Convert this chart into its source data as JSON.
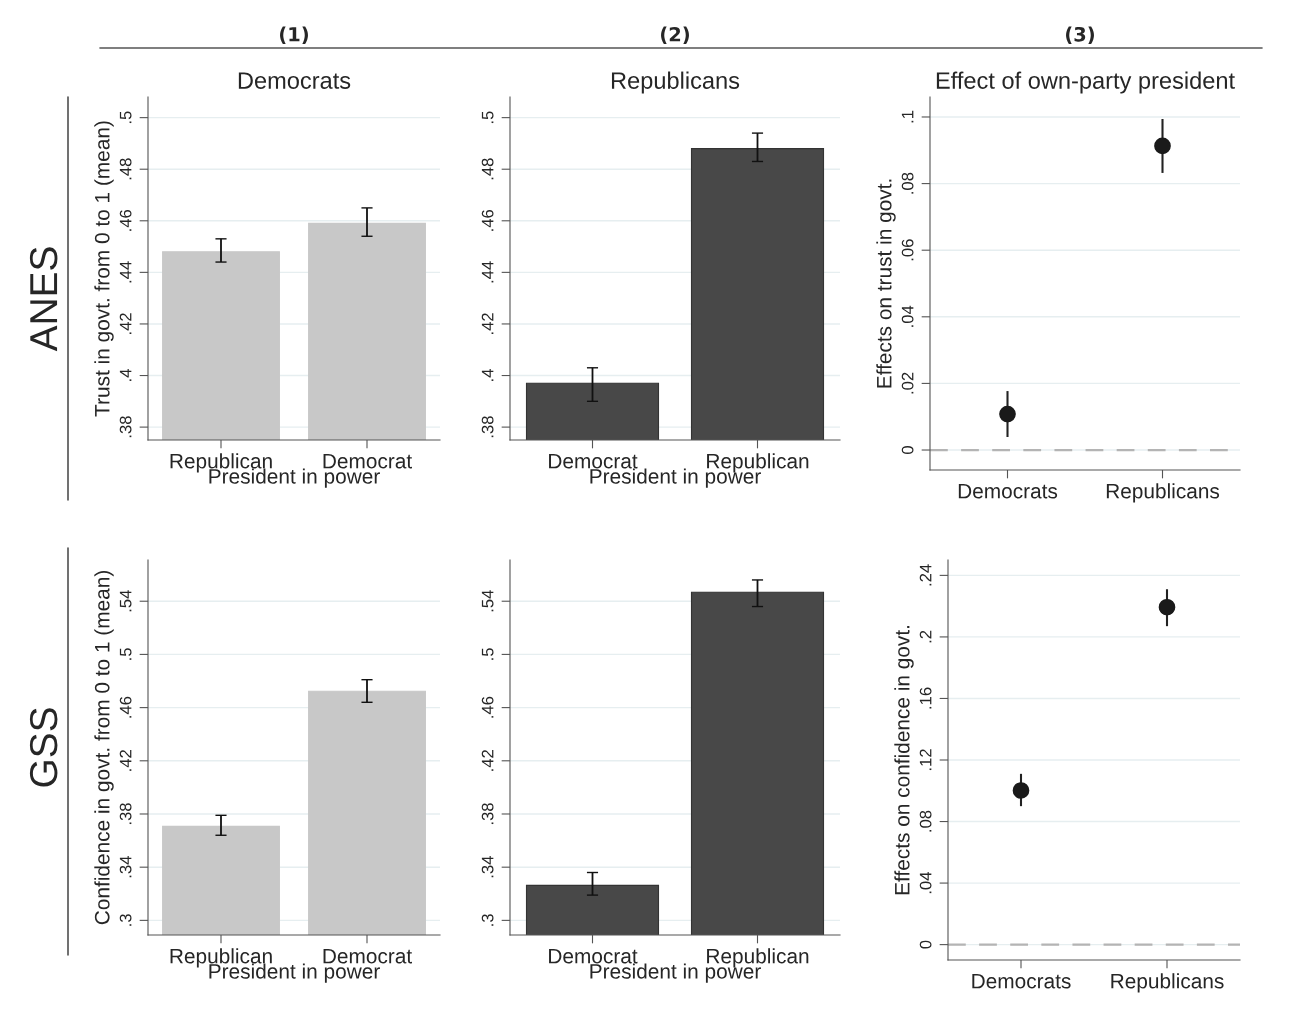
{
  "chart_data": [
    {
      "type": "bar",
      "title": "Democrats",
      "xlabel": "President in power",
      "ylabel": "Trust in govt. from 0 to 1 (mean)",
      "annotations": [
        "(1)",
        "ANES"
      ],
      "categories": [
        "Republican",
        "Democrat"
      ],
      "values": [
        0.448,
        0.459
      ],
      "errors": [
        [
          0.444,
          0.453
        ],
        [
          0.454,
          0.465
        ]
      ],
      "color": "#c8c8c8",
      "ylim": [
        0.375,
        0.508
      ],
      "yticks": [
        {
          "value": 0.38,
          "label": ".38"
        },
        {
          "value": 0.4,
          "label": ".4"
        },
        {
          "value": 0.42,
          "label": ".42"
        },
        {
          "value": 0.44,
          "label": ".44"
        },
        {
          "value": 0.46,
          "label": ".46"
        },
        {
          "value": 0.48,
          "label": ".48"
        },
        {
          "value": 0.5,
          "label": ".5"
        }
      ],
      "grid": "y"
    },
    {
      "type": "bar",
      "title": "Republicans",
      "xlabel": "President in power",
      "annotations": [
        "(2)"
      ],
      "categories": [
        "Democrat",
        "Republican"
      ],
      "values": [
        0.397,
        0.488
      ],
      "errors": [
        [
          0.39,
          0.403
        ],
        [
          0.483,
          0.494
        ]
      ],
      "color": "#484848",
      "ylim": [
        0.375,
        0.508
      ],
      "yticks": [
        {
          "value": 0.38,
          "label": ".38"
        },
        {
          "value": 0.4,
          "label": ".4"
        },
        {
          "value": 0.42,
          "label": ".42"
        },
        {
          "value": 0.44,
          "label": ".44"
        },
        {
          "value": 0.46,
          "label": ".46"
        },
        {
          "value": 0.48,
          "label": ".48"
        },
        {
          "value": 0.5,
          "label": ".5"
        }
      ],
      "grid": "y"
    },
    {
      "type": "scatter",
      "title": "Effect of own-party president",
      "ylabel": "Effects on trust in govt.",
      "annotations": [
        "(3)"
      ],
      "categories": [
        "Democrats",
        "Republicans"
      ],
      "values": [
        0.0108,
        0.0913
      ],
      "errors": [
        [
          0.0039,
          0.0177
        ],
        [
          0.0832,
          0.0994
        ]
      ],
      "color": "#1a1a1a",
      "marker": "circle",
      "ylim": [
        -0.006,
        0.106
      ],
      "yticks": [
        {
          "value": 0,
          "label": "0"
        },
        {
          "value": 0.02,
          "label": ".02"
        },
        {
          "value": 0.04,
          "label": ".04"
        },
        {
          "value": 0.06,
          "label": ".06"
        },
        {
          "value": 0.08,
          "label": ".08"
        },
        {
          "value": 0.1,
          "label": ".1"
        }
      ],
      "grid": "y",
      "ref_lines": [
        {
          "axis": "y",
          "value": 0,
          "color": "#b4b4b4",
          "line_style": "dashed"
        }
      ]
    },
    {
      "type": "bar",
      "xlabel": "President in power",
      "ylabel": "Confidence in govt. from 0 to 1 (mean)",
      "annotations": [
        "GSS"
      ],
      "categories": [
        "Republican",
        "Democrat"
      ],
      "values": [
        0.3707,
        0.4723
      ],
      "errors": [
        [
          0.364,
          0.379
        ],
        [
          0.464,
          0.481
        ]
      ],
      "color": "#c8c8c8",
      "ylim": [
        0.289,
        0.571
      ],
      "yticks": [
        {
          "value": 0.3,
          "label": ".3"
        },
        {
          "value": 0.34,
          "label": ".34"
        },
        {
          "value": 0.38,
          "label": ".38"
        },
        {
          "value": 0.42,
          "label": ".42"
        },
        {
          "value": 0.46,
          "label": ".46"
        },
        {
          "value": 0.5,
          "label": ".5"
        },
        {
          "value": 0.54,
          "label": ".54"
        }
      ],
      "grid": "y"
    },
    {
      "type": "bar",
      "xlabel": "President in power",
      "categories": [
        "Democrat",
        "Republican"
      ],
      "values": [
        0.3263,
        0.5468
      ],
      "errors": [
        [
          0.319,
          0.336
        ],
        [
          0.536,
          0.556
        ]
      ],
      "color": "#484848",
      "ylim": [
        0.289,
        0.571
      ],
      "yticks": [
        {
          "value": 0.3,
          "label": ".3"
        },
        {
          "value": 0.34,
          "label": ".34"
        },
        {
          "value": 0.38,
          "label": ".38"
        },
        {
          "value": 0.42,
          "label": ".42"
        },
        {
          "value": 0.46,
          "label": ".46"
        },
        {
          "value": 0.5,
          "label": ".5"
        },
        {
          "value": 0.54,
          "label": ".54"
        }
      ],
      "grid": "y"
    },
    {
      "type": "scatter",
      "ylabel": "Effects on confidence in govt.",
      "categories": [
        "Democrats",
        "Republicans"
      ],
      "values": [
        0.1002,
        0.2193
      ],
      "errors": [
        [
          0.09,
          0.111
        ],
        [
          0.207,
          0.231
        ]
      ],
      "color": "#1a1a1a",
      "marker": "circle",
      "ylim": [
        -0.01,
        0.25
      ],
      "yticks": [
        {
          "value": 0,
          "label": "0"
        },
        {
          "value": 0.04,
          "label": ".04"
        },
        {
          "value": 0.08,
          "label": ".08"
        },
        {
          "value": 0.12,
          "label": ".12"
        },
        {
          "value": 0.16,
          "label": ".16"
        },
        {
          "value": 0.2,
          "label": ".2"
        },
        {
          "value": 0.24,
          "label": ".24"
        }
      ],
      "grid": "y",
      "ref_lines": [
        {
          "axis": "y",
          "value": 0,
          "color": "#b4b4b4",
          "line_style": "dashed"
        }
      ]
    }
  ]
}
